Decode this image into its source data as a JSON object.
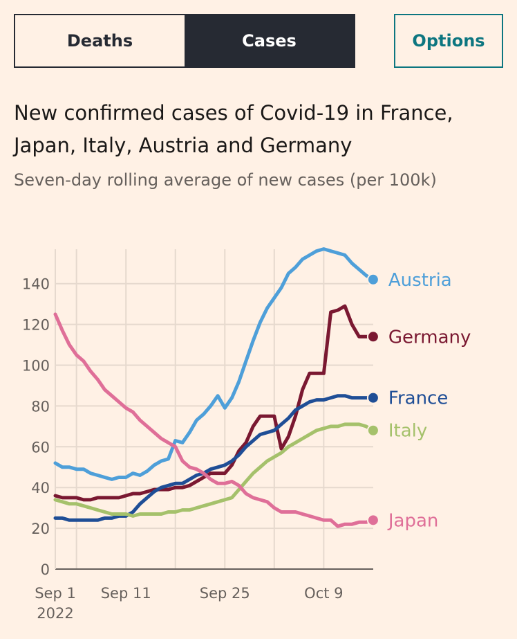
{
  "toggle": {
    "deaths": "Deaths",
    "cases": "Cases",
    "selected": "Cases"
  },
  "options_label": "Options",
  "chart_data": {
    "type": "line",
    "title": "New confirmed cases of Covid-19 in France, Japan, Italy, Austria and Germany",
    "subtitle": "Seven-day rolling average of new cases (per 100k)",
    "x_start": "2022-09-01",
    "x_end": "2022-10-16",
    "x_ticks": [
      {
        "day": 0,
        "label": "Sep 1",
        "sublabel": "2022"
      },
      {
        "day": 10,
        "label": "Sep 11"
      },
      {
        "day": 24,
        "label": "Sep 25"
      },
      {
        "day": 38,
        "label": "Oct 9"
      }
    ],
    "x_gridline_days": [
      3,
      10,
      17,
      24,
      31,
      38
    ],
    "ylim": [
      0,
      150
    ],
    "y_ticks": [
      0,
      20,
      40,
      60,
      80,
      100,
      120,
      140
    ],
    "grid": true,
    "legend": "end-of-line labels",
    "series": [
      {
        "name": "Austria",
        "color": "#4e9fd9",
        "values": [
          52,
          50,
          50,
          49,
          49,
          47,
          46,
          45,
          44,
          45,
          45,
          47,
          46,
          48,
          51,
          53,
          54,
          63,
          62,
          67,
          73,
          76,
          80,
          85,
          79,
          84,
          92,
          102,
          112,
          121,
          128,
          133,
          138,
          145,
          148,
          152,
          154,
          156,
          157,
          156,
          155,
          154,
          150,
          147,
          144,
          142
        ]
      },
      {
        "name": "Germany",
        "color": "#7a1831",
        "values": [
          36,
          35,
          35,
          35,
          34,
          34,
          35,
          35,
          35,
          35,
          36,
          37,
          37,
          38,
          39,
          39,
          39,
          40,
          40,
          41,
          43,
          45,
          47,
          47,
          47,
          51,
          58,
          62,
          70,
          75,
          75,
          75,
          59,
          65,
          75,
          88,
          96,
          96,
          96,
          126,
          127,
          129,
          120,
          114,
          114,
          114
        ]
      },
      {
        "name": "France",
        "color": "#1f4e96",
        "values": [
          25,
          25,
          24,
          24,
          24,
          24,
          24,
          25,
          25,
          26,
          26,
          28,
          32,
          35,
          38,
          40,
          41,
          42,
          42,
          44,
          46,
          47,
          49,
          50,
          51,
          53,
          56,
          60,
          63,
          66,
          67,
          68,
          71,
          74,
          78,
          80,
          82,
          83,
          83,
          84,
          85,
          85,
          84,
          84,
          84,
          84
        ]
      },
      {
        "name": "Italy",
        "color": "#a5c16b",
        "values": [
          34,
          33,
          32,
          32,
          31,
          30,
          29,
          28,
          27,
          27,
          27,
          26,
          27,
          27,
          27,
          27,
          28,
          28,
          29,
          29,
          30,
          31,
          32,
          33,
          34,
          35,
          39,
          43,
          47,
          50,
          53,
          55,
          57,
          60,
          62,
          64,
          66,
          68,
          69,
          70,
          70,
          71,
          71,
          71,
          70,
          68
        ]
      },
      {
        "name": "Japan",
        "color": "#df6f98",
        "values": [
          125,
          117,
          110,
          105,
          102,
          97,
          93,
          88,
          85,
          82,
          79,
          77,
          73,
          70,
          67,
          64,
          62,
          60,
          53,
          50,
          49,
          47,
          44,
          42,
          42,
          43,
          41,
          37,
          35,
          34,
          33,
          30,
          28,
          28,
          28,
          27,
          26,
          25,
          24,
          24,
          21,
          22,
          22,
          23,
          23,
          24
        ]
      }
    ]
  }
}
